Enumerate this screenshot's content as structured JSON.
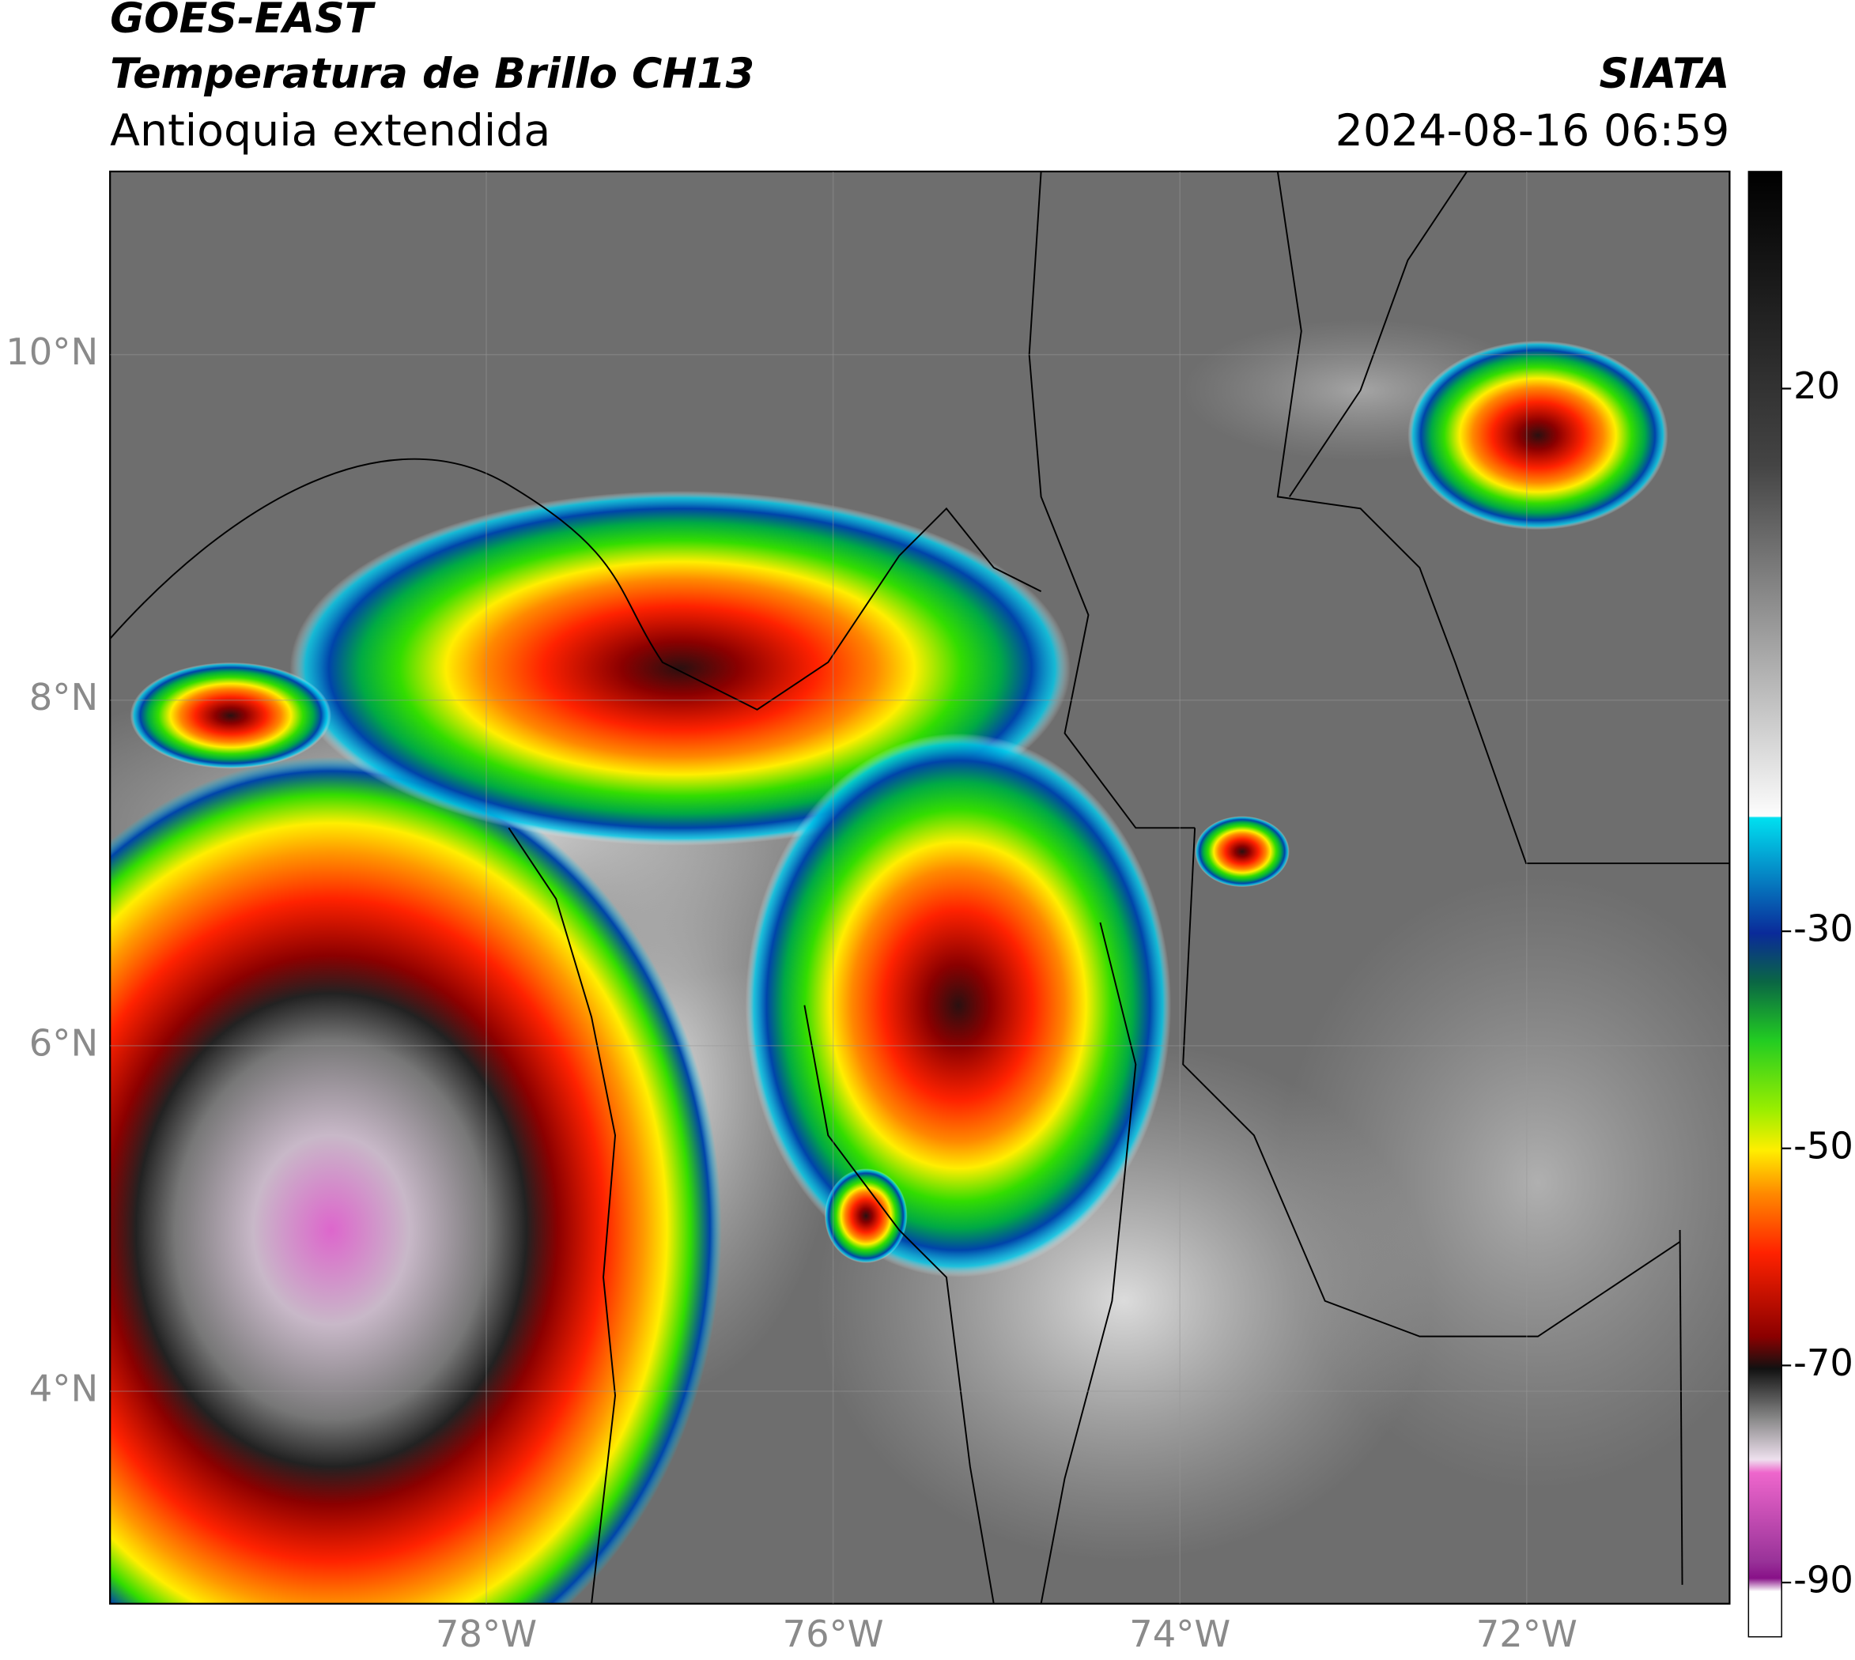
{
  "header": {
    "title": "GOES-EAST",
    "subtitle": "Temperatura de Brillo CH13",
    "region": "Antioquia extendida",
    "source": "SIATA",
    "datetime": "2024-08-16 06:59"
  },
  "chart_data": {
    "type": "map",
    "xlim": [
      -80.17,
      -70.83
    ],
    "ylim": [
      2.77,
      11.06
    ],
    "xticks": [
      {
        "value": -78,
        "label": "78°W"
      },
      {
        "value": -76,
        "label": "76°W"
      },
      {
        "value": -74,
        "label": "74°W"
      },
      {
        "value": -72,
        "label": "72°W"
      }
    ],
    "yticks": [
      {
        "value": 4,
        "label": "4°N"
      },
      {
        "value": 6,
        "label": "6°N"
      },
      {
        "value": 8,
        "label": "8°N"
      },
      {
        "value": 10,
        "label": "10°N"
      }
    ],
    "grid": true,
    "colorbar": {
      "clim": [
        -95,
        40
      ],
      "ticks": [
        -90,
        -70,
        -50,
        -30,
        20
      ]
    }
  }
}
